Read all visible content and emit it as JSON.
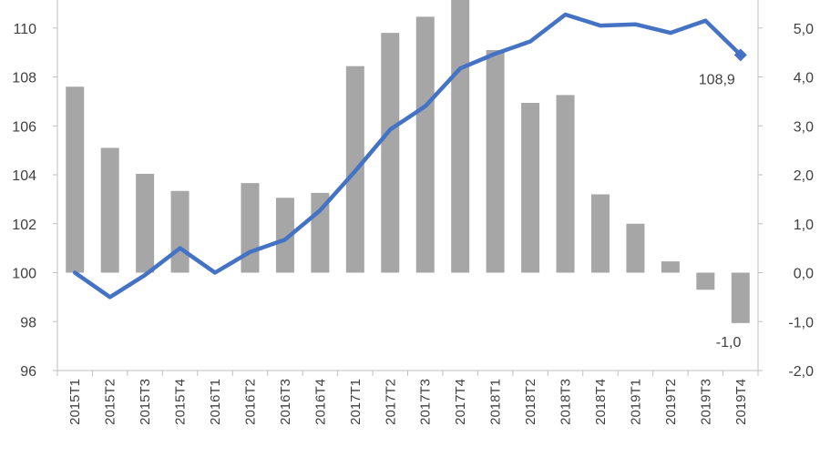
{
  "chart_data": {
    "type": "bar+line",
    "categories": [
      "2015T1",
      "2015T2",
      "2015T3",
      "2015T4",
      "2016T1",
      "2016T2",
      "2016T3",
      "2016T4",
      "2017T1",
      "2017T2",
      "2017T3",
      "2017T4",
      "2018T1",
      "2018T2",
      "2018T3",
      "2018T4",
      "2019T1",
      "2019T2",
      "2019T3",
      "2019T4"
    ],
    "bar_series": {
      "axis": "right",
      "color": "#a6a6a6",
      "values": [
        3.8,
        2.55,
        2.02,
        1.67,
        0.0,
        1.83,
        1.53,
        1.63,
        4.22,
        4.9,
        5.23,
        5.6,
        4.55,
        3.47,
        3.63,
        1.6,
        1.0,
        0.23,
        -0.35,
        -1.03
      ]
    },
    "line_series": {
      "axis": "left",
      "color": "#4472c4",
      "values": [
        100.0,
        99.0,
        99.9,
        101.0,
        100.0,
        100.85,
        101.35,
        102.55,
        104.15,
        105.85,
        106.8,
        108.35,
        108.95,
        109.45,
        110.55,
        110.1,
        110.15,
        109.8,
        110.3,
        108.9
      ]
    },
    "left_axis": {
      "ylim": [
        96,
        111
      ],
      "ticks": [
        "96",
        "98",
        "100",
        "102",
        "104",
        "106",
        "108",
        "110"
      ],
      "tick_values": [
        96,
        98,
        100,
        102,
        104,
        106,
        108,
        110
      ]
    },
    "right_axis": {
      "ylim": [
        -2.0,
        5.5
      ],
      "ticks": [
        "-2,0",
        "-1,0",
        "0,0",
        "1,0",
        "2,0",
        "3,0",
        "4,0",
        "5,0"
      ],
      "tick_values": [
        -2,
        -1,
        0,
        1,
        2,
        3,
        4,
        5
      ]
    },
    "annotations": [
      {
        "text": "108,9",
        "series": "line",
        "index": 19
      },
      {
        "text": "-1,0",
        "series": "bar",
        "index": 19
      }
    ],
    "grid": false,
    "legend": "none"
  }
}
